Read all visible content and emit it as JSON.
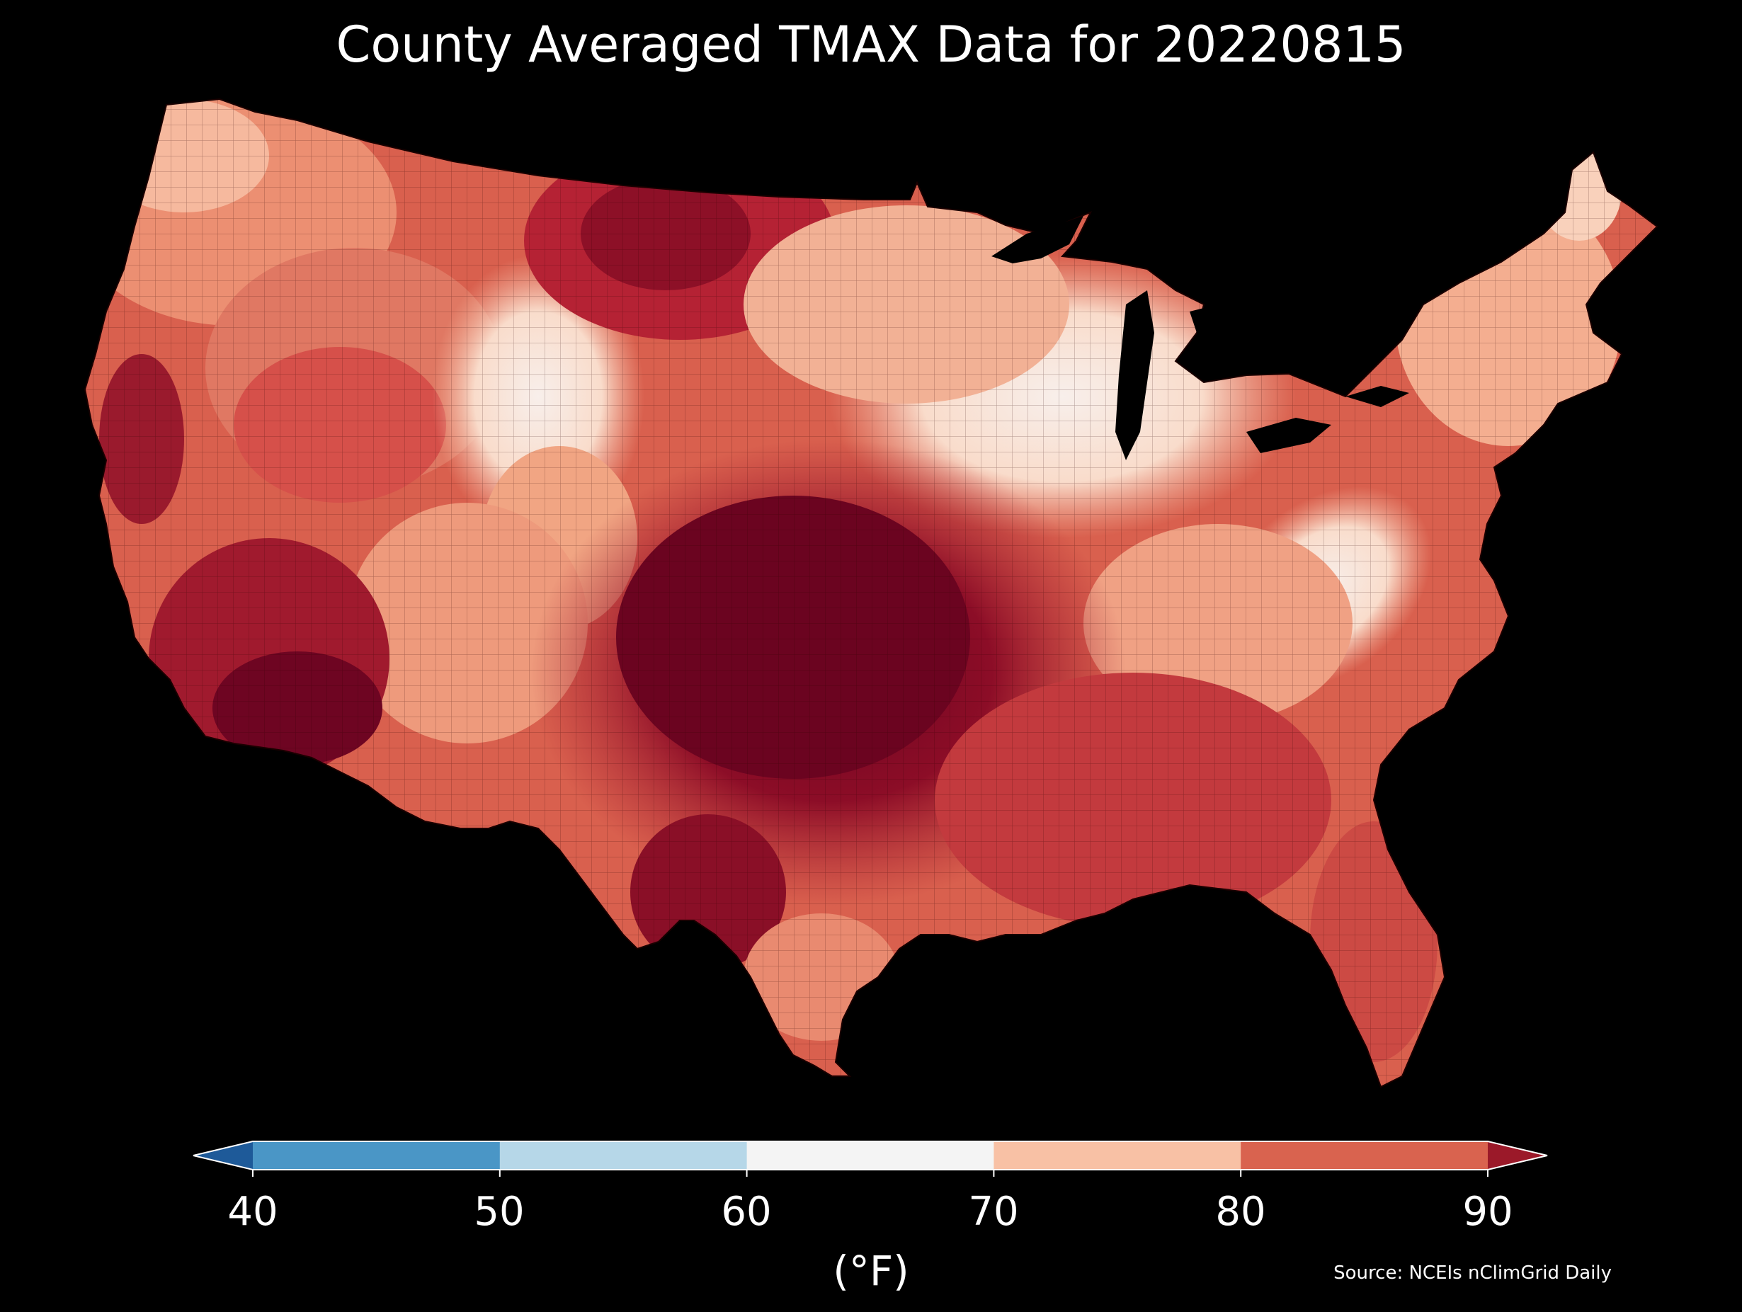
{
  "title": "County Averaged TMAX Data for 20220815",
  "colorbar": {
    "units": "(°F)",
    "ticks": [
      "40",
      "50",
      "60",
      "70",
      "80",
      "90"
    ],
    "bins": [
      {
        "from": 40,
        "to": 50,
        "color": "#4a96c6"
      },
      {
        "from": 50,
        "to": 60,
        "color": "#b6d7e8"
      },
      {
        "from": 60,
        "to": 70,
        "color": "#f4f4f4"
      },
      {
        "from": 70,
        "to": 80,
        "color": "#f8c1a5"
      },
      {
        "from": 80,
        "to": 90,
        "color": "#d9634f"
      }
    ],
    "under_color": "#1e5a99",
    "over_color": "#9b1929"
  },
  "source": "Source: NCEIs nClimGrid Daily",
  "map_colors": {
    "ocean": "#000000",
    "cool": "#fbe3d5",
    "mild": "#f4a98a",
    "warm": "#d9604e",
    "hot": "#a71d2f",
    "hottest": "#6b0420"
  }
}
